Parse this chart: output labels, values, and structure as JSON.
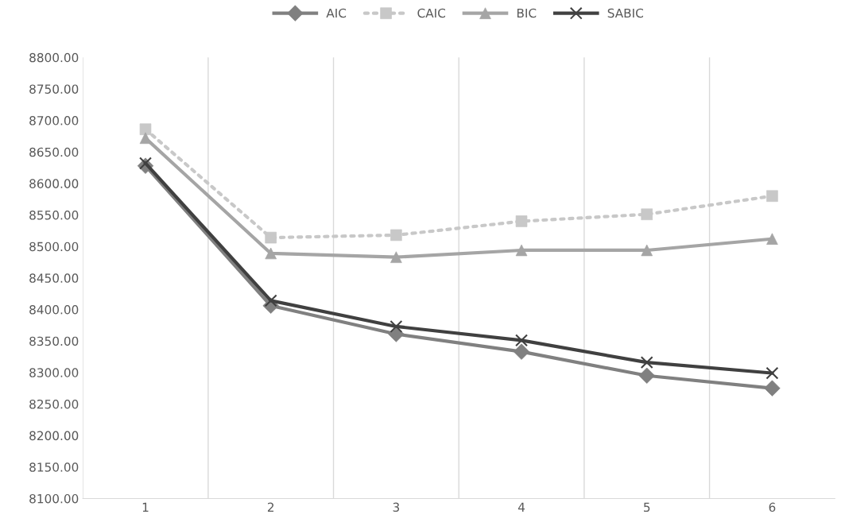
{
  "chart_data": {
    "type": "line",
    "categories": [
      "1",
      "2",
      "3",
      "4",
      "5",
      "6"
    ],
    "series": [
      {
        "name": "AIC",
        "color": "#808080",
        "marker": "diamond",
        "line_style": "solid",
        "values": [
          8628,
          8406,
          8361,
          8333,
          8295,
          8275
        ]
      },
      {
        "name": "CAIC",
        "color": "#c8c8c8",
        "marker": "square",
        "line_style": "dotted",
        "values": [
          8686,
          8514,
          8518,
          8540,
          8551,
          8580
        ]
      },
      {
        "name": "BIC",
        "color": "#a5a5a5",
        "marker": "triangle",
        "line_style": "solid",
        "values": [
          8672,
          8489,
          8483,
          8494,
          8494,
          8512
        ]
      },
      {
        "name": "SABIC",
        "color": "#404040",
        "marker": "cross",
        "line_style": "solid",
        "values": [
          8632,
          8414,
          8373,
          8351,
          8316,
          8299
        ]
      }
    ],
    "ylim": [
      8100,
      8800
    ],
    "yticks": [
      {
        "value": 8100,
        "label": "8100.00"
      },
      {
        "value": 8150,
        "label": "8150.00"
      },
      {
        "value": 8200,
        "label": "8200.00"
      },
      {
        "value": 8250,
        "label": "8250.00"
      },
      {
        "value": 8300,
        "label": "8300.00"
      },
      {
        "value": 8350,
        "label": "8350.00"
      },
      {
        "value": 8400,
        "label": "8400.00"
      },
      {
        "value": 8450,
        "label": "8450.00"
      },
      {
        "value": 8500,
        "label": "8500.00"
      },
      {
        "value": 8550,
        "label": "8550.00"
      },
      {
        "value": 8600,
        "label": "8600.00"
      },
      {
        "value": 8650,
        "label": "8650.00"
      },
      {
        "value": 8700,
        "label": "8700.00"
      },
      {
        "value": 8750,
        "label": "8750.00"
      },
      {
        "value": 8800,
        "label": "8800.00"
      }
    ],
    "grid": "x",
    "legend": "top"
  }
}
